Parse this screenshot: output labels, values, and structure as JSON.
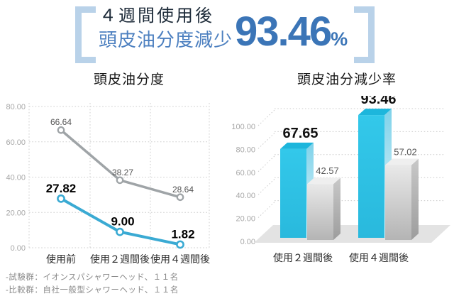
{
  "header": {
    "line1": "４週間使用後",
    "line2": "頭皮油分度減少",
    "big_value": "93.46",
    "percent_sign": "%",
    "accent_color": "#3b75b7",
    "bracket_color": "#b9d2e9"
  },
  "chart_data": [
    {
      "type": "line",
      "title": "頭皮油分度",
      "categories": [
        "使用前",
        "使用２週間後",
        "使用４週間後"
      ],
      "series": [
        {
          "name": "比較群",
          "color": "#9fa4a7",
          "values": [
            66.64,
            38.27,
            28.64
          ]
        },
        {
          "name": "試験群",
          "color": "#3aaad3",
          "values": [
            27.82,
            9.0,
            1.82
          ]
        }
      ],
      "ylim": [
        0,
        80
      ],
      "yticks": [
        80,
        60,
        40,
        20,
        0
      ],
      "grid": "dotted",
      "legend": "none"
    },
    {
      "type": "bar",
      "style": "3d",
      "title": "頭皮油分減少率",
      "categories": [
        "使用２週間後",
        "使用４週間後"
      ],
      "series": [
        {
          "name": "試験群",
          "color": "#2bc1e6",
          "values": [
            67.65,
            93.46
          ]
        },
        {
          "name": "比較群",
          "color": "#c9c9c9",
          "values": [
            42.57,
            57.02
          ]
        }
      ],
      "ylim": [
        0,
        100
      ],
      "yticks": [
        100,
        80,
        60,
        40,
        20,
        0
      ],
      "grid": "dotted",
      "legend": "none"
    }
  ],
  "footnotes": [
    "-試験群：イオンスパシャワーヘッド、１１名",
    "-比較群：自社一般型シャワーヘッド、１１名"
  ]
}
